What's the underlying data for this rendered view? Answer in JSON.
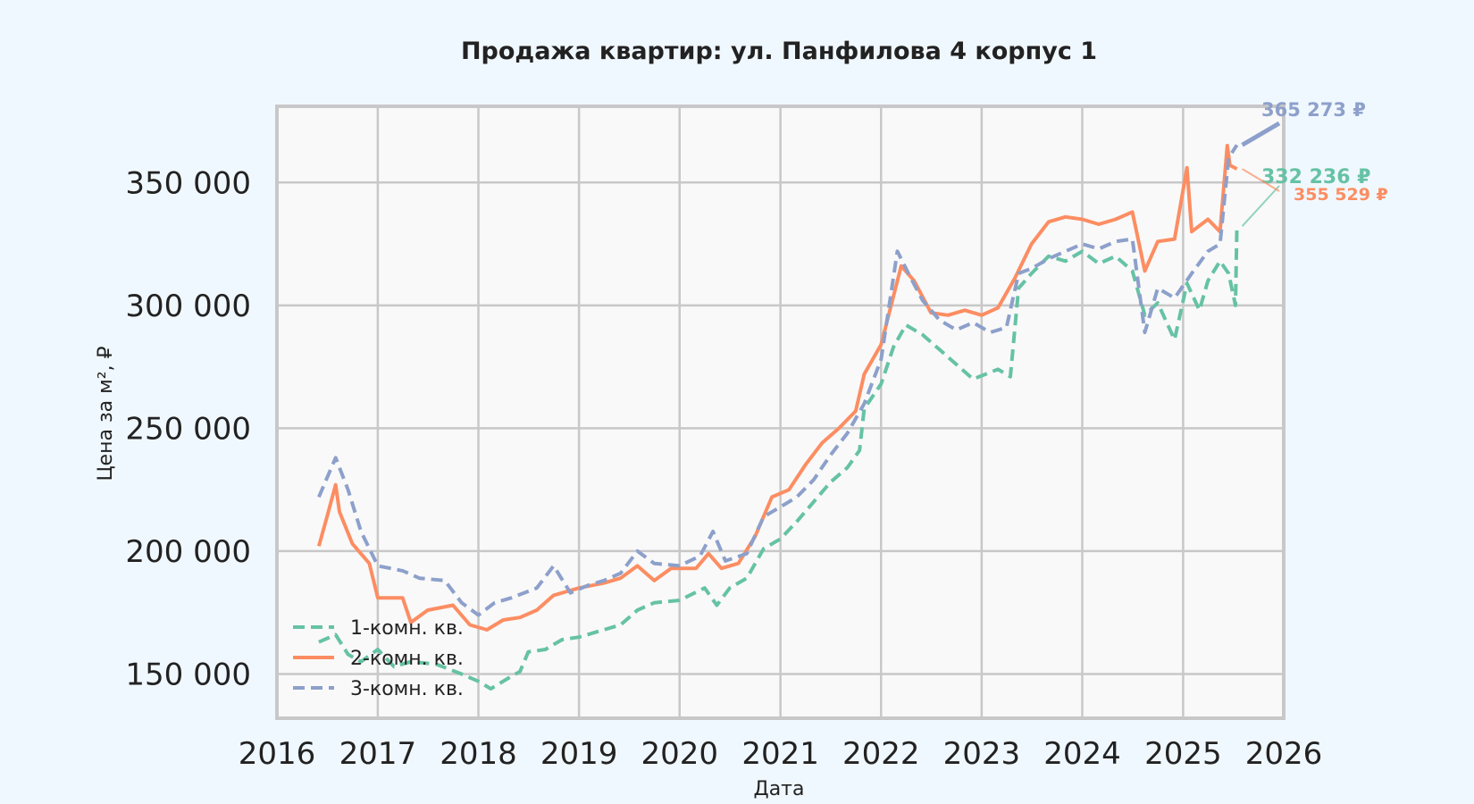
{
  "chart_data": {
    "type": "line",
    "title": "Продажа квартир: ул. Панфилова 4 корпус 1",
    "xlabel": "Дата",
    "ylabel": "Цена за м², ₽",
    "xlim": [
      "2016-01-01",
      "2026-01-01"
    ],
    "ylim": [
      132000,
      381000
    ],
    "x_ticks": [
      "2016",
      "2017",
      "2018",
      "2019",
      "2020",
      "2021",
      "2022",
      "2023",
      "2024",
      "2025",
      "2026"
    ],
    "y_ticks": [
      150000,
      200000,
      250000,
      300000,
      350000
    ],
    "y_tick_labels": [
      "150 000",
      "200 000",
      "250 000",
      "300 000",
      "350 000"
    ],
    "grid": true,
    "legend_position": "bottom-left",
    "series": [
      {
        "name": "1-комн. кв.",
        "color": "#66c2a5",
        "style": "dashed",
        "points": [
          [
            "2016-06-01",
            163000
          ],
          [
            "2016-08-01",
            166000
          ],
          [
            "2016-09-15",
            158000
          ],
          [
            "2016-11-01",
            155000
          ],
          [
            "2017-01-01",
            160000
          ],
          [
            "2017-03-01",
            153000
          ],
          [
            "2017-05-01",
            155000
          ],
          [
            "2017-08-01",
            154000
          ],
          [
            "2017-11-01",
            150000
          ],
          [
            "2018-01-01",
            147000
          ],
          [
            "2018-02-15",
            144000
          ],
          [
            "2018-04-15",
            148000
          ],
          [
            "2018-06-01",
            151000
          ],
          [
            "2018-07-01",
            159000
          ],
          [
            "2018-09-01",
            160000
          ],
          [
            "2018-10-01",
            162000
          ],
          [
            "2018-11-01",
            164000
          ],
          [
            "2019-01-01",
            165000
          ],
          [
            "2019-04-01",
            168000
          ],
          [
            "2019-06-01",
            170000
          ],
          [
            "2019-08-01",
            176000
          ],
          [
            "2019-10-01",
            179000
          ],
          [
            "2020-01-01",
            180000
          ],
          [
            "2020-04-01",
            185000
          ],
          [
            "2020-05-15",
            178000
          ],
          [
            "2020-07-01",
            185000
          ],
          [
            "2020-09-01",
            189000
          ],
          [
            "2020-11-01",
            201000
          ],
          [
            "2021-01-01",
            205000
          ],
          [
            "2021-03-01",
            212000
          ],
          [
            "2021-05-01",
            220000
          ],
          [
            "2021-07-01",
            228000
          ],
          [
            "2021-09-01",
            234000
          ],
          [
            "2021-10-15",
            241000
          ],
          [
            "2021-11-01",
            258000
          ],
          [
            "2022-01-01",
            268000
          ],
          [
            "2022-02-15",
            283000
          ],
          [
            "2022-04-01",
            292000
          ],
          [
            "2022-06-01",
            288000
          ],
          [
            "2022-08-01",
            282000
          ],
          [
            "2022-10-01",
            276000
          ],
          [
            "2022-12-01",
            270000
          ],
          [
            "2023-03-01",
            274000
          ],
          [
            "2023-04-15",
            271000
          ],
          [
            "2023-05-15",
            307000
          ],
          [
            "2023-07-01",
            313000
          ],
          [
            "2023-09-01",
            320000
          ],
          [
            "2023-11-01",
            318000
          ],
          [
            "2024-01-01",
            322000
          ],
          [
            "2024-03-01",
            317000
          ],
          [
            "2024-05-01",
            320000
          ],
          [
            "2024-07-01",
            314000
          ],
          [
            "2024-08-15",
            296000
          ],
          [
            "2024-10-01",
            301000
          ],
          [
            "2024-12-01",
            286000
          ],
          [
            "2025-01-15",
            309000
          ],
          [
            "2025-03-01",
            298000
          ],
          [
            "2025-04-01",
            310000
          ],
          [
            "2025-05-15",
            318000
          ],
          [
            "2025-06-15",
            313000
          ],
          [
            "2025-07-10",
            300000
          ],
          [
            "2025-07-15",
            332236
          ]
        ]
      },
      {
        "name": "2-комн. кв.",
        "color": "#fc8d62",
        "style": "solid",
        "points": [
          [
            "2016-06-01",
            202000
          ],
          [
            "2016-07-01",
            214000
          ],
          [
            "2016-08-01",
            227000
          ],
          [
            "2016-08-15",
            216000
          ],
          [
            "2016-10-01",
            203000
          ],
          [
            "2016-12-01",
            195000
          ],
          [
            "2017-01-01",
            181000
          ],
          [
            "2017-04-01",
            181000
          ],
          [
            "2017-05-01",
            171000
          ],
          [
            "2017-07-01",
            176000
          ],
          [
            "2017-10-01",
            178000
          ],
          [
            "2017-12-01",
            170000
          ],
          [
            "2018-02-01",
            168000
          ],
          [
            "2018-04-01",
            172000
          ],
          [
            "2018-06-01",
            173000
          ],
          [
            "2018-08-01",
            176000
          ],
          [
            "2018-10-01",
            182000
          ],
          [
            "2019-01-01",
            185000
          ],
          [
            "2019-04-01",
            187000
          ],
          [
            "2019-06-01",
            189000
          ],
          [
            "2019-08-01",
            194000
          ],
          [
            "2019-10-01",
            188000
          ],
          [
            "2019-12-01",
            193000
          ],
          [
            "2020-03-01",
            193000
          ],
          [
            "2020-04-15",
            199000
          ],
          [
            "2020-06-01",
            193000
          ],
          [
            "2020-08-01",
            195000
          ],
          [
            "2020-10-01",
            206000
          ],
          [
            "2020-12-01",
            222000
          ],
          [
            "2021-02-01",
            225000
          ],
          [
            "2021-04-01",
            235000
          ],
          [
            "2021-06-01",
            244000
          ],
          [
            "2021-08-01",
            250000
          ],
          [
            "2021-10-01",
            257000
          ],
          [
            "2021-11-01",
            272000
          ],
          [
            "2022-01-01",
            284000
          ],
          [
            "2022-03-15",
            316000
          ],
          [
            "2022-05-01",
            310000
          ],
          [
            "2022-07-01",
            297000
          ],
          [
            "2022-09-01",
            296000
          ],
          [
            "2022-11-01",
            298000
          ],
          [
            "2023-01-01",
            296000
          ],
          [
            "2023-03-01",
            299000
          ],
          [
            "2023-05-01",
            311000
          ],
          [
            "2023-07-01",
            325000
          ],
          [
            "2023-09-01",
            334000
          ],
          [
            "2023-11-01",
            336000
          ],
          [
            "2024-01-01",
            335000
          ],
          [
            "2024-03-01",
            333000
          ],
          [
            "2024-05-01",
            335000
          ],
          [
            "2024-07-01",
            338000
          ],
          [
            "2024-08-15",
            314000
          ],
          [
            "2024-10-01",
            326000
          ],
          [
            "2024-12-01",
            327000
          ],
          [
            "2025-01-15",
            356000
          ],
          [
            "2025-02-01",
            330000
          ],
          [
            "2025-04-01",
            335000
          ],
          [
            "2025-05-15",
            330000
          ],
          [
            "2025-06-10",
            365000
          ],
          [
            "2025-06-20",
            357000
          ],
          [
            "2025-07-15",
            355529
          ]
        ]
      },
      {
        "name": "3-комн. кв.",
        "color": "#8da0cb",
        "style": "dashed",
        "points": [
          [
            "2016-06-01",
            222000
          ],
          [
            "2016-08-01",
            238000
          ],
          [
            "2016-09-15",
            225000
          ],
          [
            "2016-11-01",
            208000
          ],
          [
            "2017-01-01",
            194000
          ],
          [
            "2017-04-01",
            192000
          ],
          [
            "2017-06-01",
            189000
          ],
          [
            "2017-09-01",
            188000
          ],
          [
            "2017-11-01",
            179000
          ],
          [
            "2018-01-01",
            174000
          ],
          [
            "2018-03-01",
            179000
          ],
          [
            "2018-05-01",
            181000
          ],
          [
            "2018-08-01",
            185000
          ],
          [
            "2018-10-01",
            194000
          ],
          [
            "2018-12-01",
            183000
          ],
          [
            "2019-02-01",
            186000
          ],
          [
            "2019-04-01",
            188000
          ],
          [
            "2019-06-01",
            191000
          ],
          [
            "2019-08-01",
            200000
          ],
          [
            "2019-10-01",
            195000
          ],
          [
            "2020-01-01",
            194000
          ],
          [
            "2020-03-15",
            198000
          ],
          [
            "2020-05-01",
            208000
          ],
          [
            "2020-06-15",
            196000
          ],
          [
            "2020-09-01",
            199000
          ],
          [
            "2020-11-01",
            214000
          ],
          [
            "2021-01-01",
            218000
          ],
          [
            "2021-03-01",
            222000
          ],
          [
            "2021-05-01",
            229000
          ],
          [
            "2021-07-01",
            239000
          ],
          [
            "2021-09-01",
            248000
          ],
          [
            "2021-11-01",
            260000
          ],
          [
            "2022-01-01",
            278000
          ],
          [
            "2022-03-01",
            322000
          ],
          [
            "2022-04-15",
            312000
          ],
          [
            "2022-06-01",
            302000
          ],
          [
            "2022-08-01",
            294000
          ],
          [
            "2022-10-01",
            290000
          ],
          [
            "2022-12-01",
            293000
          ],
          [
            "2023-02-01",
            289000
          ],
          [
            "2023-04-01",
            291000
          ],
          [
            "2023-05-15",
            313000
          ],
          [
            "2023-07-01",
            315000
          ],
          [
            "2023-09-01",
            319000
          ],
          [
            "2023-11-01",
            322000
          ],
          [
            "2024-01-01",
            325000
          ],
          [
            "2024-03-01",
            323000
          ],
          [
            "2024-05-01",
            326000
          ],
          [
            "2024-07-01",
            327000
          ],
          [
            "2024-08-15",
            289000
          ],
          [
            "2024-10-01",
            307000
          ],
          [
            "2024-12-01",
            303000
          ],
          [
            "2025-02-01",
            313000
          ],
          [
            "2025-04-01",
            322000
          ],
          [
            "2025-05-15",
            325000
          ],
          [
            "2025-06-15",
            360000
          ],
          [
            "2025-07-15",
            365273
          ]
        ]
      }
    ],
    "annotations": [
      {
        "text": "365 273 ₽",
        "series": "3-комн. кв.",
        "color": "#8da0cb"
      },
      {
        "text": "332 236 ₽",
        "series": "1-комн. кв.",
        "color": "#66c2a5"
      },
      {
        "text": "355 529 ₽",
        "series": "2-комн. кв.",
        "color": "#fc8d62"
      }
    ]
  }
}
